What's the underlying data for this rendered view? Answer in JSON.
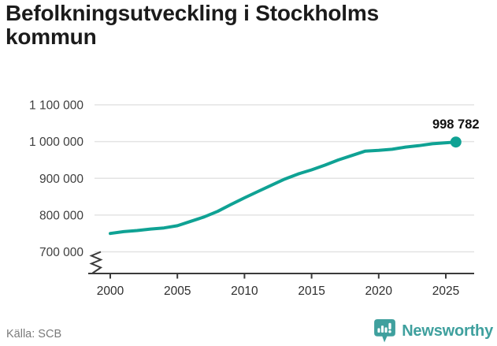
{
  "title": "Befolkningsutveckling i Stockholms kommun",
  "footer": {
    "source_label": "Källa: SCB",
    "brand": "Newsworthy",
    "logo_icon": "bar-chart-speech-bubble-icon"
  },
  "colors": {
    "line": "#0fa294",
    "marker": "#0fa294",
    "grid": "#e3e3e3",
    "axis": "#3b3b3b",
    "x_tick_label": "#2e2e2e",
    "y_tick_label": "#3e3e3e",
    "annotation": "#111111",
    "title": "#1b1b1b",
    "source": "#7a7a7a",
    "brand": "#3fa09e"
  },
  "annotation": {
    "last_value_label": "998 782"
  },
  "chart_data": {
    "type": "line",
    "title": "Befolkningsutveckling i Stockholms kommun",
    "xlabel": "",
    "ylabel": "",
    "ylim": [
      700000,
      1100000
    ],
    "xlim": [
      2000,
      2025.75
    ],
    "y_axis_break": true,
    "grid": "horizontal",
    "legend": "none",
    "x": [
      2000,
      2001,
      2002,
      2003,
      2004,
      2005,
      2006,
      2007,
      2008,
      2009,
      2010,
      2011,
      2012,
      2013,
      2014,
      2015,
      2016,
      2017,
      2018,
      2019,
      2020,
      2021,
      2022,
      2023,
      2024,
      2025.75
    ],
    "series": [
      {
        "name": "Befolkningsutveckling i Stockholms kommun",
        "values": [
          750000,
          755000,
          758000,
          762000,
          765000,
          771000,
          783000,
          795000,
          810000,
          829000,
          847000,
          864000,
          881000,
          898000,
          912000,
          923000,
          936000,
          950000,
          962000,
          974000,
          976000,
          979000,
          985000,
          989000,
          994000,
          998782
        ]
      }
    ],
    "yticks": [
      {
        "value": 1100000,
        "label": "1 100 000"
      },
      {
        "value": 1000000,
        "label": "1 000 000"
      },
      {
        "value": 900000,
        "label": "900 000"
      },
      {
        "value": 800000,
        "label": "800 000"
      },
      {
        "value": 700000,
        "label": "700 000"
      }
    ],
    "xticks": [
      {
        "value": 2000,
        "label": "2000"
      },
      {
        "value": 2005,
        "label": "2005"
      },
      {
        "value": 2010,
        "label": "2010"
      },
      {
        "value": 2015,
        "label": "2015"
      },
      {
        "value": 2020,
        "label": "2020"
      },
      {
        "value": 2025,
        "label": "2025"
      }
    ],
    "end_point": {
      "x": 2025.75,
      "value": 998782,
      "label": "998 782"
    },
    "source": "Källa: SCB"
  }
}
